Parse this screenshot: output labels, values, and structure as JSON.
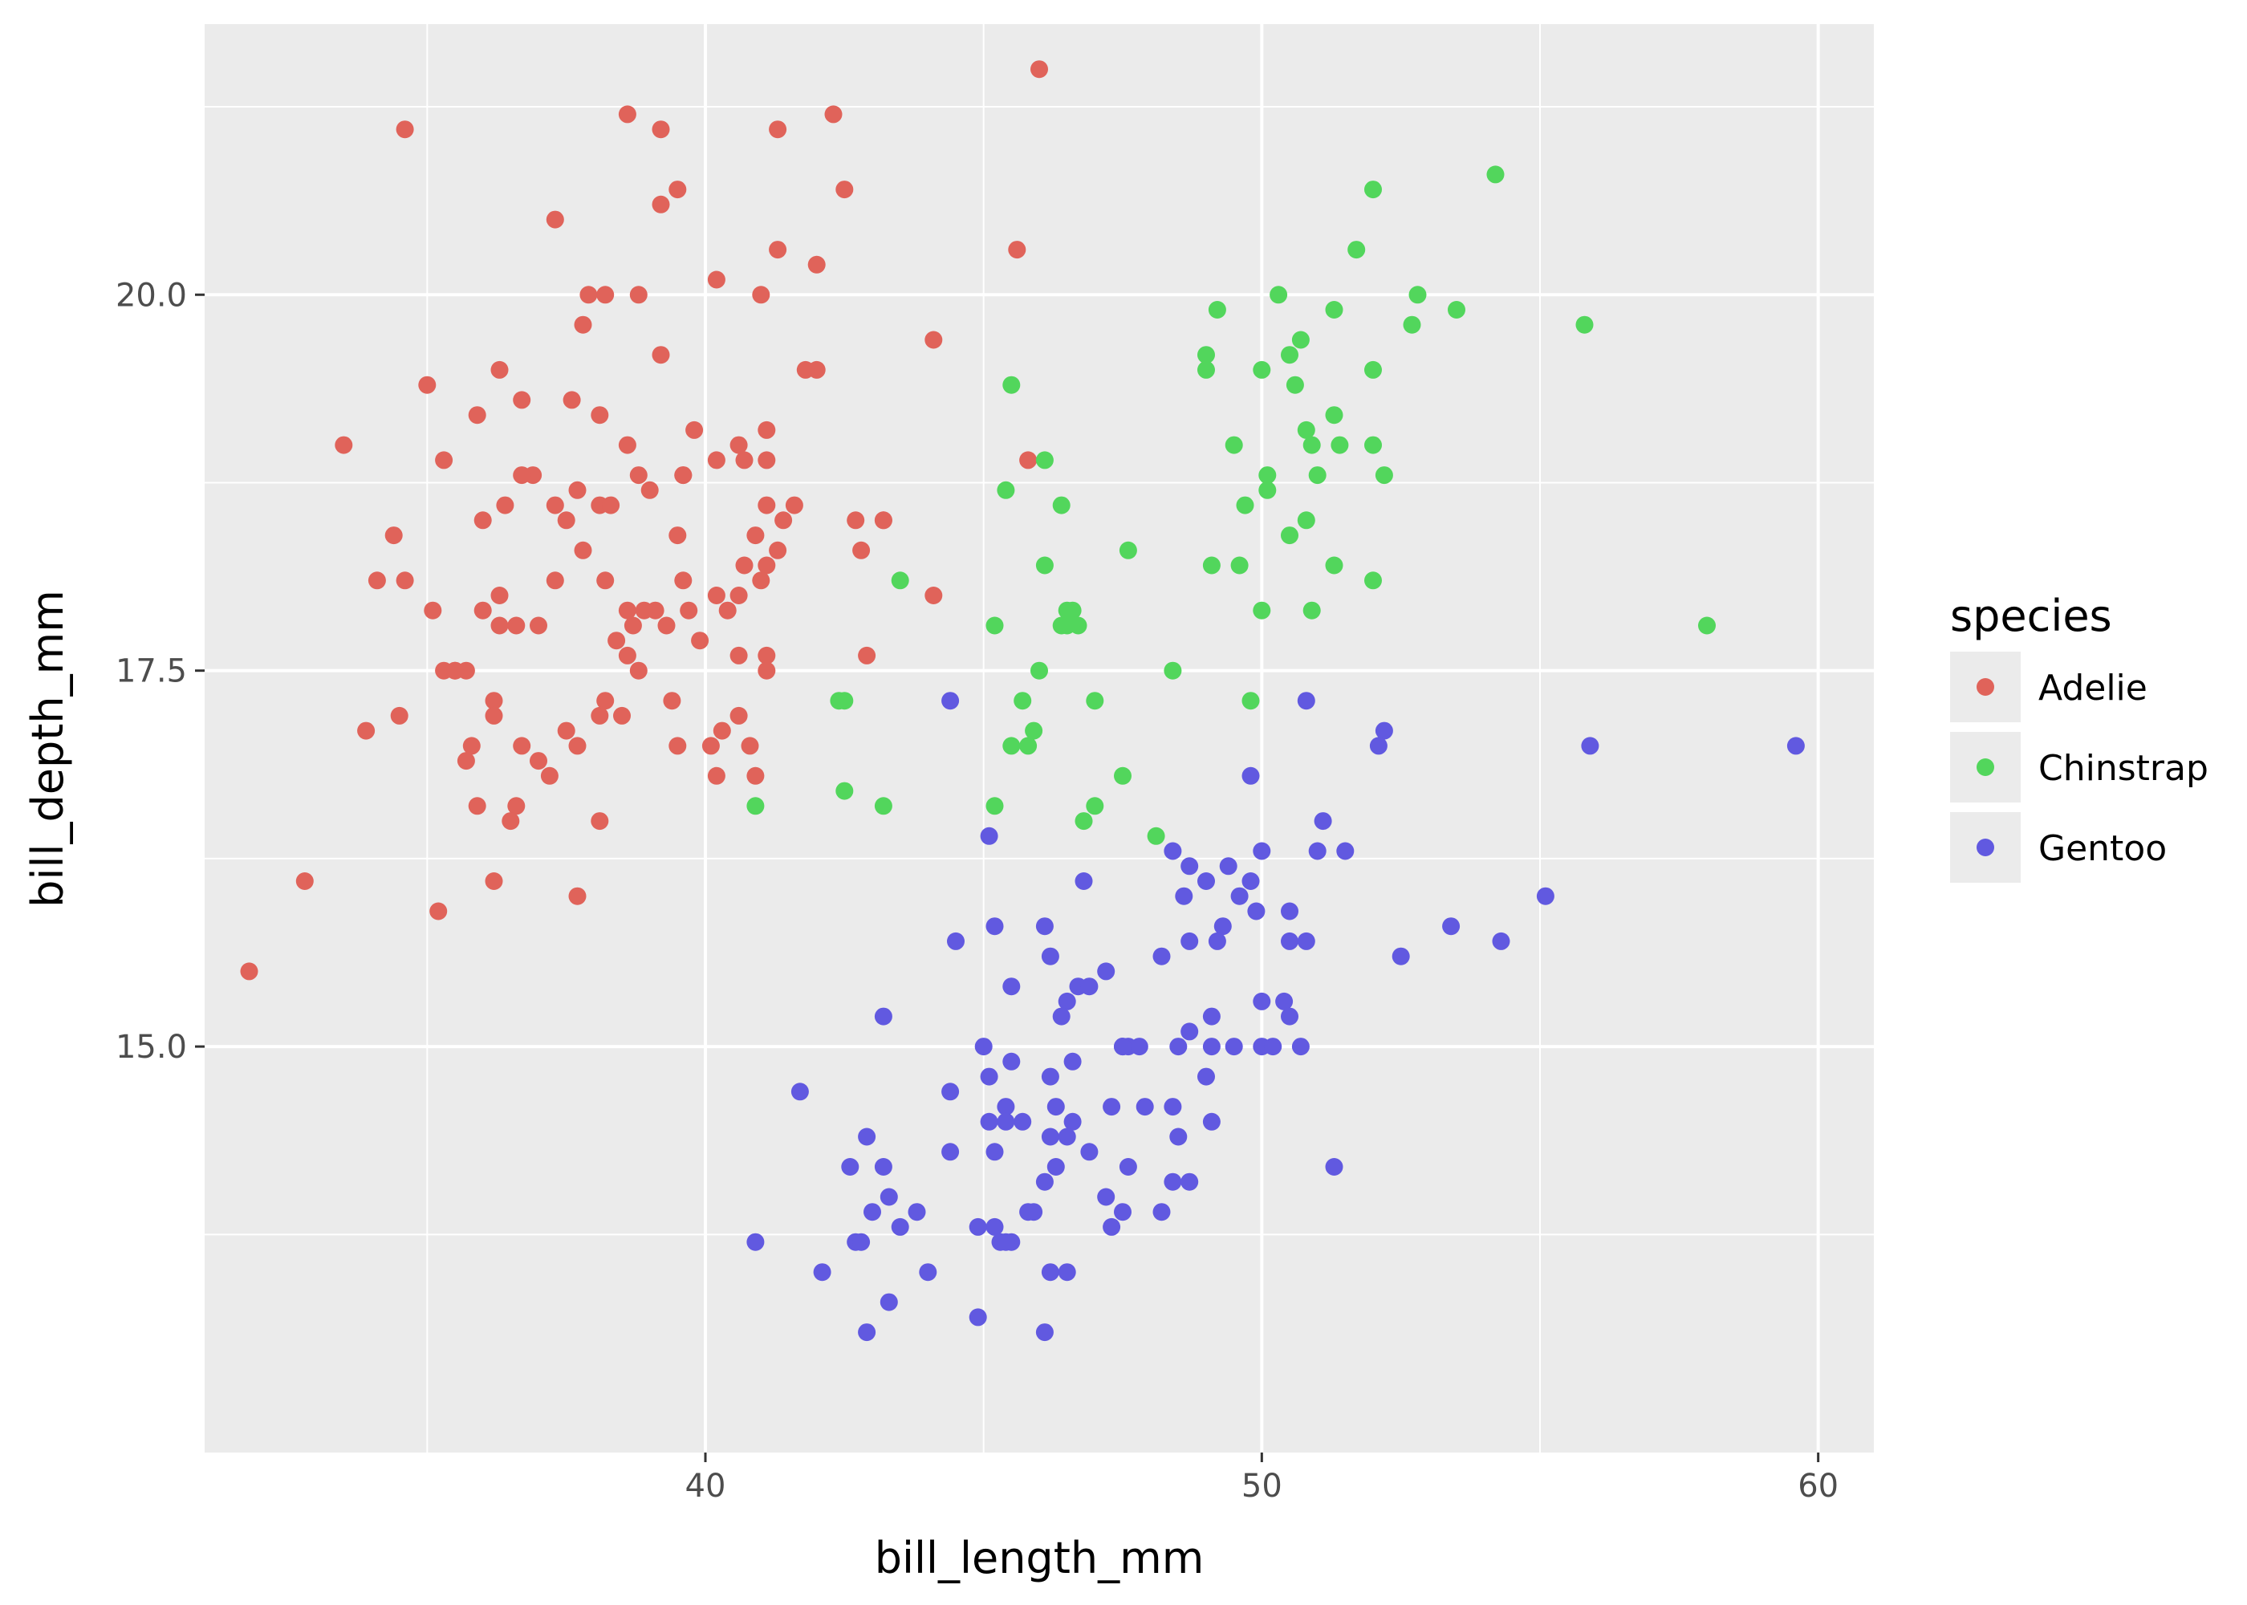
{
  "chart_data": {
    "type": "scatter",
    "title": "",
    "xlabel": "bill_length_mm",
    "ylabel": "bill_depth_mm",
    "xlim": [
      31.0,
      61.0
    ],
    "ylim": [
      12.3,
      21.8
    ],
    "x_ticks": [
      40,
      50,
      60
    ],
    "x_tick_labels": [
      "40",
      "50",
      "60"
    ],
    "y_ticks": [
      15.0,
      17.5,
      20.0
    ],
    "y_tick_labels": [
      "15.0",
      "17.5",
      "20.0"
    ],
    "grid": true,
    "background": "#ebebeb",
    "legend": {
      "title": "species",
      "position": "right",
      "entries": [
        "Adelie",
        "Chinstrap",
        "Gentoo"
      ]
    },
    "series": [
      {
        "name": "Adelie",
        "color": "#e0635a",
        "x": [
          46.0,
          34.6,
          38.6,
          39.2,
          41.3,
          42.3,
          39.5,
          39.2,
          42.5,
          37.3,
          45.6,
          41.3,
          42.0,
          40.2,
          41.0,
          37.9,
          38.2,
          38.8,
          37.8,
          44.1,
          36.3,
          39.2,
          42.0,
          41.8,
          35.0,
          36.7,
          37.6,
          35.9,
          38.1,
          36.9,
          33.5,
          35.3,
          39.6,
          40.7,
          41.1,
          42.7,
          43.2,
          40.2,
          40.6,
          38.6,
          38.8,
          41.1,
          37.3,
          37.7,
          38.1,
          36.0,
          39.0,
          39.6,
          37.8,
          38.2,
          41.1,
          41.4,
          42.8,
          43.2,
          34.4,
          34.1,
          34.6,
          39.5,
          37.5,
          38.3,
          39.6,
          40.9,
          41.3,
          36.7,
          36.4,
          41.6,
          40.4,
          41.0,
          40.7,
          41.1,
          39.8,
          35.1,
          35.3,
          36.2,
          37.7,
          38.1,
          39.5,
          40.3,
          41.1,
          40.8,
          44.1,
          40.6,
          38.5,
          36.6,
          36.3,
          40.2,
          39.9,
          38.7,
          39.1,
          40.1,
          39.3,
          42.9,
          38.6,
          38.2,
          39.4,
          41.1,
          35.5,
          35.7,
          38.8,
          40.6,
          34.5,
          33.9,
          36.2,
          37.5,
          36.0,
          40.6,
          37.0,
          37.3,
          39.7,
          38.6,
          38.4,
          36.3,
          38.9,
          40.2,
          35.9,
          35.7,
          36.6,
          35.8,
          37.0,
          40.9,
          38.1,
          36.5,
          37.2,
          36.7,
          35.5,
          36.2,
          32.8,
          37.7,
          35.2,
          31.8,
          45.8
        ],
        "y": [
          21.5,
          21.1,
          21.2,
          21.1,
          21.1,
          21.2,
          20.7,
          20.6,
          20.7,
          20.5,
          20.3,
          20.3,
          20.2,
          20.1,
          20.0,
          20.0,
          20.0,
          20.0,
          19.8,
          19.7,
          19.5,
          19.6,
          19.5,
          19.5,
          19.4,
          19.3,
          19.3,
          19.2,
          19.2,
          18.8,
          19.0,
          18.9,
          18.8,
          18.9,
          18.9,
          18.5,
          18.5,
          18.9,
          19.0,
          19.0,
          18.8,
          19.1,
          18.6,
          18.7,
          18.6,
          18.5,
          18.7,
          18.1,
          18.3,
          18.1,
          18.2,
          18.5,
          18.3,
          18.5,
          18.4,
          18.1,
          18.1,
          18.4,
          18.5,
          18.6,
          18.8,
          18.4,
          18.3,
          18.8,
          18.6,
          18.6,
          17.9,
          18.1,
          18.2,
          18.6,
          19.1,
          17.9,
          17.5,
          17.3,
          17.0,
          17.2,
          17.0,
          17.1,
          17.6,
          17.0,
          18.0,
          17.2,
          17.2,
          17.8,
          17.8,
          18.0,
          17.7,
          17.8,
          17.9,
          17.0,
          17.8,
          17.6,
          17.6,
          17.3,
          17.3,
          17.5,
          17.5,
          17.5,
          17.5,
          17.6,
          17.2,
          17.1,
          17.2,
          17.1,
          17.9,
          18.0,
          17.8,
          18.1,
          17.9,
          17.9,
          17.7,
          18.0,
          17.9,
          16.8,
          16.6,
          16.9,
          16.6,
          17.0,
          16.9,
          16.8,
          16.5,
          16.5,
          16.8,
          17.0,
          17.5,
          16.1,
          16.1,
          16.0,
          15.9,
          15.5,
          18.9
        ],
        "size": 11
      },
      {
        "name": "Chinstrap",
        "color": "#52d65c",
        "x": [
          54.2,
          52.0,
          51.7,
          50.3,
          52.8,
          53.5,
          49.2,
          51.3,
          52.7,
          55.8,
          49.0,
          50.5,
          50.7,
          49.0,
          50.0,
          52.0,
          45.5,
          50.6,
          51.3,
          49.5,
          50.8,
          51.4,
          52.0,
          51.0,
          50.9,
          52.2,
          50.1,
          50.1,
          49.7,
          50.8,
          46.1,
          45.4,
          46.4,
          50.5,
          46.1,
          47.6,
          49.1,
          49.6,
          51.3,
          43.5,
          52.0,
          50.0,
          50.9,
          46.5,
          46.6,
          46.7,
          46.4,
          45.2,
          46.5,
          58.0,
          48.4,
          46.0,
          45.7,
          47.0,
          49.8,
          42.4,
          42.5,
          45.9,
          45.5,
          45.8,
          42.5,
          43.2,
          47.5,
          47.0,
          40.9,
          45.2,
          46.8,
          48.1
        ],
        "y": [
          20.8,
          20.7,
          20.3,
          20.0,
          20.0,
          19.9,
          19.9,
          19.9,
          19.8,
          19.8,
          19.6,
          19.6,
          19.7,
          19.5,
          19.5,
          19.5,
          19.4,
          19.4,
          19.2,
          19.0,
          19.1,
          19.0,
          19.0,
          18.8,
          19.0,
          18.8,
          18.8,
          18.7,
          18.6,
          18.5,
          18.9,
          18.7,
          18.6,
          18.4,
          18.2,
          18.3,
          18.2,
          18.2,
          18.2,
          18.1,
          18.1,
          17.9,
          17.9,
          17.9,
          17.9,
          17.8,
          17.8,
          17.8,
          17.8,
          17.8,
          17.5,
          17.5,
          17.3,
          17.3,
          17.3,
          17.3,
          17.3,
          17.1,
          17.0,
          17.0,
          16.7,
          16.6,
          16.8,
          16.6,
          16.6,
          16.6,
          16.5,
          16.4
        ],
        "size": 11
      },
      {
        "name": "Gentoo",
        "color": "#6159e0",
        "x": [
          44.4,
          50.8,
          52.2,
          52.1,
          55.9,
          59.6,
          49.8,
          51.1,
          51.0,
          51.5,
          45.1,
          48.4,
          49.4,
          48.7,
          49.0,
          46.8,
          48.6,
          49.6,
          50.0,
          49.8,
          50.5,
          46.1,
          49.3,
          49.9,
          55.1,
          53.4,
          44.5,
          45.2,
          46.2,
          48.2,
          48.7,
          49.2,
          50.5,
          50.8,
          52.5,
          54.3,
          47.2,
          46.7,
          45.5,
          46.5,
          46.9,
          47.5,
          46.4,
          43.2,
          45.0,
          49.1,
          49.1,
          50.0,
          50.4,
          50.0,
          50.5,
          47.6,
          47.8,
          47.5,
          48.7,
          48.5,
          45.1,
          45.5,
          46.2,
          46.6,
          47.9,
          49.0,
          49.5,
          50.2,
          50.7,
          46.3,
          48.4,
          41.7,
          44.4,
          45.4,
          45.7,
          46.6,
          47.3,
          45.1,
          45.4,
          46.2,
          46.5,
          42.9,
          45.2,
          46.3,
          48.5,
          44.4,
          43.2,
          46.1,
          46.9,
          47.6,
          48.4,
          43.3,
          42.6,
          45.9,
          47.2,
          48.2,
          48.7,
          51.3,
          43.0,
          43.5,
          43.8,
          45.2,
          45.5,
          45.8,
          44.9,
          47.5,
          45.3,
          45.4,
          47.3,
          42.7,
          42.8,
          40.9,
          46.2,
          44.0,
          42.1,
          43.3,
          44.9,
          46.5,
          46.1,
          42.9,
          49.1
        ],
        "y": [
          17.3,
          17.3,
          17.1,
          17.0,
          17.0,
          17.0,
          16.8,
          16.5,
          16.3,
          16.3,
          16.4,
          16.3,
          16.2,
          16.2,
          16.1,
          16.1,
          16.0,
          16.0,
          16.3,
          16.1,
          15.9,
          15.8,
          15.8,
          15.9,
          16.0,
          15.8,
          15.7,
          15.8,
          15.6,
          15.6,
          15.7,
          15.7,
          15.7,
          15.7,
          15.6,
          15.7,
          15.5,
          15.4,
          15.4,
          15.3,
          15.4,
          15.0,
          15.2,
          15.2,
          15.0,
          15.2,
          15.0,
          15.3,
          15.3,
          15.0,
          15.2,
          15.0,
          15.0,
          15.0,
          15.1,
          15.0,
          14.8,
          14.9,
          14.8,
          14.9,
          14.6,
          14.8,
          15.0,
          15.0,
          15.0,
          14.6,
          14.6,
          14.7,
          14.7,
          14.6,
          14.5,
          14.5,
          14.6,
          14.5,
          14.5,
          14.4,
          14.4,
          14.4,
          14.3,
          14.2,
          14.4,
          14.3,
          14.2,
          14.1,
          14.3,
          14.2,
          14.1,
          14.0,
          14.2,
          13.9,
          14.0,
          13.9,
          14.1,
          14.2,
          13.9,
          13.8,
          13.9,
          13.8,
          13.7,
          13.9,
          13.8,
          13.9,
          13.7,
          13.7,
          13.8,
          13.7,
          13.7,
          13.7,
          13.5,
          13.5,
          13.5,
          13.3,
          13.2,
          13.5,
          13.1,
          13.1,
          14.5
        ],
        "size": 11
      }
    ]
  }
}
